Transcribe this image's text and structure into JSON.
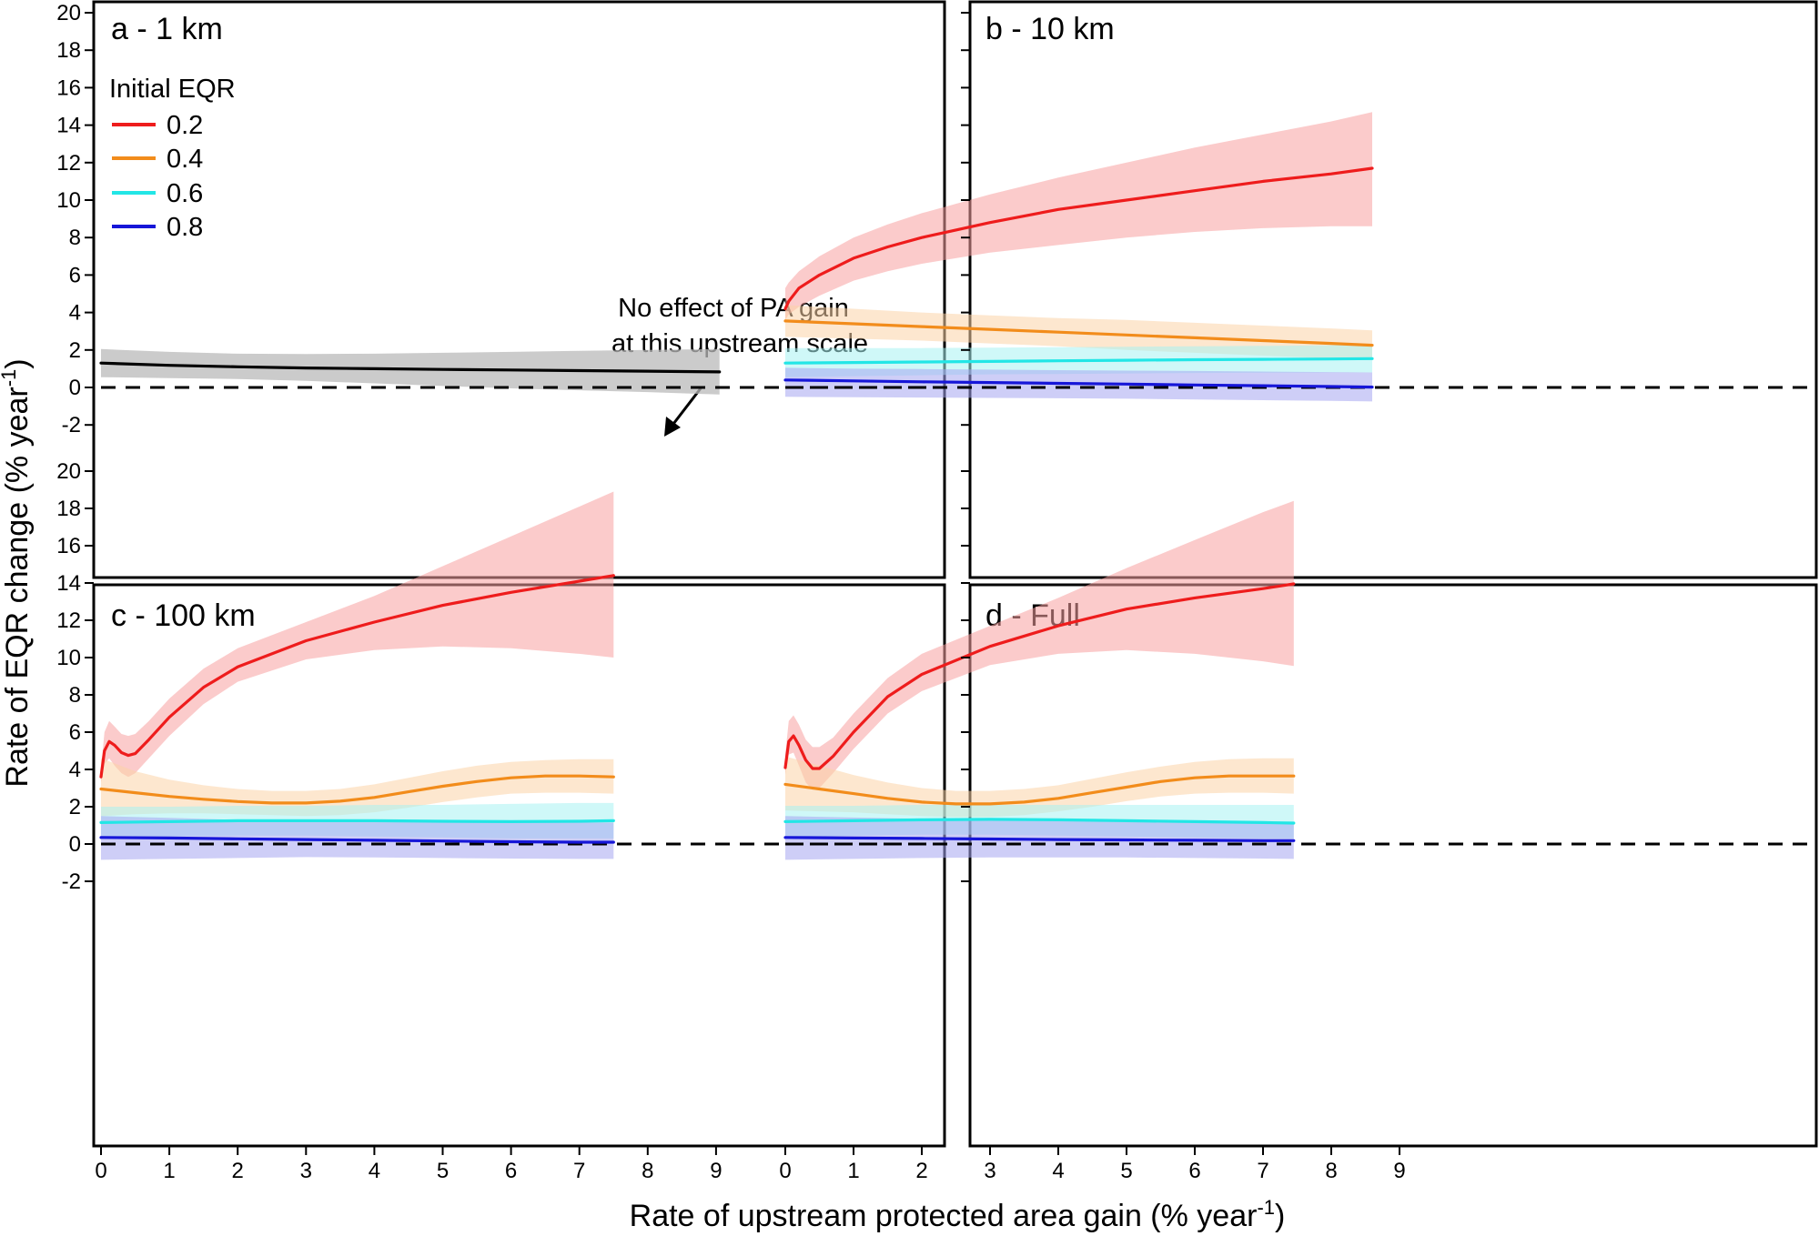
{
  "figure": {
    "ylabel": "Rate of EQR change (% year",
    "ylabel_sup": "-1",
    "ylabel_close": ")",
    "xlabel": "Rate of upstream protected area gain (% year",
    "xlabel_sup": "-1",
    "xlabel_close": ")"
  },
  "legend": {
    "title": "Initial EQR",
    "entries": [
      {
        "label": "0.2",
        "color": "#ee1c1c"
      },
      {
        "label": "0.4",
        "color": "#f28c1b"
      },
      {
        "label": "0.6",
        "color": "#22e6e6"
      },
      {
        "label": "0.8",
        "color": "#1616d8"
      }
    ]
  },
  "annotation": {
    "line1": "No effect of PA gain",
    "line2": "at this upstream scale"
  },
  "chart_data": [
    {
      "type": "line",
      "panel": "a - 1 km",
      "xlim": [
        0,
        9
      ],
      "ylim": [
        -2,
        20
      ],
      "x_ticks": [
        "0",
        "1",
        "2",
        "3",
        "4",
        "5",
        "6",
        "7",
        "8",
        "9"
      ],
      "y_ticks": [
        "-2",
        "0",
        "2",
        "4",
        "6",
        "8",
        "10",
        "12",
        "14",
        "16",
        "18",
        "20"
      ],
      "reference_line_y": 0,
      "series": [
        {
          "color": "#000000",
          "band_color": "#b9b9b9",
          "x": [
            0,
            1,
            2,
            3,
            4,
            5,
            6,
            7,
            8,
            9.05
          ],
          "y": [
            1.3,
            1.18,
            1.1,
            1.04,
            1.0,
            0.96,
            0.93,
            0.9,
            0.87,
            0.83
          ],
          "lower": [
            0.55,
            0.5,
            0.45,
            0.35,
            0.22,
            0.08,
            -0.05,
            -0.15,
            -0.25,
            -0.38
          ],
          "upper": [
            2.05,
            1.9,
            1.8,
            1.78,
            1.8,
            1.85,
            1.9,
            1.95,
            2.0,
            2.05
          ]
        }
      ]
    },
    {
      "type": "line",
      "panel": "b - 10 km",
      "xlim": [
        0,
        9
      ],
      "ylim": [
        -2,
        20
      ],
      "x_ticks": [
        "0",
        "1",
        "2",
        "3",
        "4",
        "5",
        "6",
        "7",
        "8",
        "9"
      ],
      "y_ticks": [
        "-2",
        "0",
        "2",
        "4",
        "6",
        "8",
        "10",
        "12",
        "14",
        "16",
        "18",
        "20"
      ],
      "reference_line_y": 0,
      "series": [
        {
          "name": "0.2",
          "color": "#ee1c1c",
          "band_color": "#f7a0a0",
          "x": [
            0,
            0.05,
            0.2,
            0.5,
            1,
            1.5,
            2,
            3,
            4,
            5,
            6,
            7,
            8,
            8.6
          ],
          "y": [
            4.2,
            4.6,
            5.3,
            6.0,
            6.9,
            7.5,
            8.0,
            8.8,
            9.5,
            10.0,
            10.5,
            11.0,
            11.4,
            11.7
          ],
          "lower": [
            3.6,
            3.9,
            4.3,
            4.9,
            5.7,
            6.2,
            6.6,
            7.2,
            7.6,
            8.0,
            8.3,
            8.5,
            8.6,
            8.6
          ],
          "upper": [
            5.3,
            5.6,
            6.2,
            7.0,
            8.0,
            8.7,
            9.3,
            10.3,
            11.2,
            12.0,
            12.8,
            13.5,
            14.2,
            14.7
          ]
        },
        {
          "name": "0.4",
          "color": "#f28c1b",
          "band_color": "#fbd3a8",
          "x": [
            0,
            1,
            2,
            3,
            4,
            5,
            6,
            7,
            8,
            8.6
          ],
          "y": [
            3.55,
            3.4,
            3.25,
            3.1,
            2.95,
            2.8,
            2.65,
            2.5,
            2.35,
            2.25
          ],
          "lower": [
            2.7,
            2.6,
            2.5,
            2.35,
            2.2,
            2.0,
            1.85,
            1.7,
            1.55,
            1.45
          ],
          "upper": [
            4.4,
            4.2,
            4.0,
            3.85,
            3.7,
            3.6,
            3.45,
            3.3,
            3.15,
            3.05
          ]
        },
        {
          "name": "0.6",
          "color": "#22e6e6",
          "band_color": "#a8f3f3",
          "x": [
            0,
            1,
            2,
            3,
            4,
            5,
            6,
            7,
            8,
            8.6
          ],
          "y": [
            1.3,
            1.33,
            1.36,
            1.39,
            1.42,
            1.45,
            1.48,
            1.5,
            1.52,
            1.54
          ],
          "lower": [
            0.55,
            0.6,
            0.65,
            0.7,
            0.72,
            0.75,
            0.77,
            0.78,
            0.8,
            0.8
          ],
          "upper": [
            2.1,
            2.1,
            2.1,
            2.12,
            2.15,
            2.17,
            2.2,
            2.22,
            2.25,
            2.3
          ]
        },
        {
          "name": "0.8",
          "color": "#1616d8",
          "band_color": "#a5a5f0",
          "x": [
            0,
            1,
            2,
            3,
            4,
            5,
            6,
            7,
            8,
            8.6
          ],
          "y": [
            0.4,
            0.35,
            0.3,
            0.26,
            0.22,
            0.18,
            0.13,
            0.09,
            0.05,
            0.02
          ],
          "lower": [
            -0.5,
            -0.52,
            -0.54,
            -0.56,
            -0.58,
            -0.6,
            -0.64,
            -0.68,
            -0.72,
            -0.75
          ],
          "upper": [
            1.05,
            1.0,
            0.98,
            0.95,
            0.92,
            0.9,
            0.88,
            0.85,
            0.82,
            0.8
          ]
        }
      ]
    },
    {
      "type": "line",
      "panel": "c - 100 km",
      "xlim": [
        0,
        9
      ],
      "ylim": [
        -2,
        20
      ],
      "x_ticks": [
        "0",
        "1",
        "2",
        "3",
        "4",
        "5",
        "6",
        "7",
        "8",
        "9"
      ],
      "y_ticks": [
        "-2",
        "0",
        "2",
        "4",
        "6",
        "8",
        "10",
        "12",
        "14",
        "16",
        "18",
        "20"
      ],
      "reference_line_y": 0,
      "series": [
        {
          "name": "0.2",
          "color": "#ee1c1c",
          "band_color": "#f7a0a0",
          "x": [
            0,
            0.05,
            0.12,
            0.2,
            0.3,
            0.4,
            0.5,
            0.7,
            1,
            1.5,
            2,
            3,
            4,
            5,
            6,
            7,
            7.5
          ],
          "y": [
            3.6,
            5.0,
            5.5,
            5.3,
            4.9,
            4.75,
            4.85,
            5.6,
            6.8,
            8.4,
            9.5,
            10.9,
            11.9,
            12.8,
            13.5,
            14.1,
            14.4
          ],
          "lower": [
            3.3,
            4.3,
            4.6,
            4.2,
            3.8,
            3.6,
            3.8,
            4.6,
            5.8,
            7.5,
            8.7,
            9.9,
            10.4,
            10.6,
            10.5,
            10.2,
            10.0
          ],
          "upper": [
            4.0,
            6.0,
            6.6,
            6.3,
            5.9,
            5.8,
            5.9,
            6.6,
            7.8,
            9.4,
            10.5,
            11.9,
            13.3,
            14.9,
            16.5,
            18.1,
            18.9
          ]
        },
        {
          "name": "0.4",
          "color": "#f28c1b",
          "band_color": "#fbd3a8",
          "x": [
            0,
            0.5,
            1,
            1.5,
            2,
            2.5,
            3,
            3.5,
            4,
            4.5,
            5,
            5.5,
            6,
            6.5,
            7,
            7.5
          ],
          "y": [
            2.95,
            2.75,
            2.55,
            2.4,
            2.28,
            2.2,
            2.2,
            2.3,
            2.5,
            2.8,
            3.1,
            3.35,
            3.55,
            3.65,
            3.65,
            3.6
          ],
          "lower": [
            1.5,
            1.6,
            1.65,
            1.65,
            1.6,
            1.55,
            1.5,
            1.55,
            1.7,
            1.95,
            2.25,
            2.5,
            2.7,
            2.75,
            2.75,
            2.7
          ],
          "upper": [
            4.6,
            3.9,
            3.45,
            3.15,
            2.95,
            2.85,
            2.85,
            2.95,
            3.2,
            3.55,
            3.9,
            4.2,
            4.4,
            4.5,
            4.55,
            4.55
          ]
        },
        {
          "name": "0.6",
          "color": "#22e6e6",
          "band_color": "#a8f3f3",
          "x": [
            0,
            1,
            2,
            3,
            4,
            5,
            6,
            7,
            7.5
          ],
          "y": [
            1.15,
            1.2,
            1.25,
            1.25,
            1.25,
            1.22,
            1.2,
            1.22,
            1.25
          ],
          "lower": [
            0.3,
            0.4,
            0.45,
            0.45,
            0.4,
            0.35,
            0.3,
            0.3,
            0.3
          ],
          "upper": [
            2.0,
            2.0,
            2.05,
            2.05,
            2.1,
            2.1,
            2.15,
            2.2,
            2.2
          ]
        },
        {
          "name": "0.8",
          "color": "#1616d8",
          "band_color": "#a5a5f0",
          "x": [
            0,
            1,
            2,
            3,
            4,
            5,
            6,
            7,
            7.5
          ],
          "y": [
            0.35,
            0.32,
            0.28,
            0.24,
            0.2,
            0.16,
            0.12,
            0.1,
            0.1
          ],
          "lower": [
            -0.85,
            -0.8,
            -0.75,
            -0.7,
            -0.72,
            -0.75,
            -0.78,
            -0.8,
            -0.8
          ],
          "upper": [
            1.5,
            1.4,
            1.3,
            1.25,
            1.2,
            1.18,
            1.15,
            1.15,
            1.15
          ]
        }
      ]
    },
    {
      "type": "line",
      "panel": "d - Full",
      "xlim": [
        0,
        9
      ],
      "ylim": [
        -2,
        20
      ],
      "x_ticks": [
        "0",
        "1",
        "2",
        "3",
        "4",
        "5",
        "6",
        "7",
        "8",
        "9"
      ],
      "y_ticks": [
        "-2",
        "0",
        "2",
        "4",
        "6",
        "8",
        "10",
        "12",
        "14",
        "16",
        "18",
        "20"
      ],
      "reference_line_y": 0,
      "series": [
        {
          "name": "0.2",
          "color": "#ee1c1c",
          "band_color": "#f7a0a0",
          "x": [
            0,
            0.05,
            0.12,
            0.2,
            0.3,
            0.4,
            0.5,
            0.7,
            1,
            1.5,
            2,
            3,
            4,
            5,
            6,
            7,
            7.45
          ],
          "y": [
            4.1,
            5.5,
            5.8,
            5.3,
            4.5,
            4.05,
            4.05,
            4.7,
            6.0,
            7.9,
            9.1,
            10.6,
            11.7,
            12.6,
            13.2,
            13.7,
            13.95
          ],
          "lower": [
            3.7,
            4.8,
            4.9,
            4.2,
            3.3,
            2.9,
            3.0,
            3.8,
            5.1,
            7.0,
            8.2,
            9.6,
            10.2,
            10.4,
            10.2,
            9.8,
            9.55
          ],
          "upper": [
            4.8,
            6.6,
            6.9,
            6.4,
            5.6,
            5.2,
            5.2,
            5.7,
            7.0,
            8.9,
            10.2,
            11.7,
            13.2,
            14.8,
            16.3,
            17.8,
            18.4
          ]
        },
        {
          "name": "0.4",
          "color": "#f28c1b",
          "band_color": "#fbd3a8",
          "x": [
            0,
            0.5,
            1,
            1.5,
            2,
            2.5,
            3,
            3.5,
            4,
            4.5,
            5,
            5.5,
            6,
            6.5,
            7,
            7.45
          ],
          "y": [
            3.2,
            2.95,
            2.7,
            2.45,
            2.25,
            2.15,
            2.15,
            2.25,
            2.45,
            2.75,
            3.05,
            3.35,
            3.55,
            3.65,
            3.65,
            3.65
          ],
          "lower": [
            1.8,
            1.75,
            1.7,
            1.6,
            1.5,
            1.45,
            1.45,
            1.55,
            1.75,
            2.0,
            2.3,
            2.55,
            2.7,
            2.75,
            2.75,
            2.7
          ],
          "upper": [
            4.7,
            4.2,
            3.7,
            3.3,
            3.0,
            2.85,
            2.85,
            2.95,
            3.15,
            3.5,
            3.85,
            4.15,
            4.4,
            4.55,
            4.6,
            4.6
          ]
        },
        {
          "name": "0.6",
          "color": "#22e6e6",
          "band_color": "#a8f3f3",
          "x": [
            0,
            1,
            2,
            3,
            4,
            5,
            6,
            7,
            7.45
          ],
          "y": [
            1.2,
            1.25,
            1.3,
            1.32,
            1.3,
            1.25,
            1.2,
            1.15,
            1.12
          ],
          "lower": [
            0.35,
            0.45,
            0.5,
            0.5,
            0.45,
            0.4,
            0.35,
            0.3,
            0.3
          ],
          "upper": [
            2.05,
            2.05,
            2.1,
            2.1,
            2.1,
            2.1,
            2.1,
            2.1,
            2.1
          ]
        },
        {
          "name": "0.8",
          "color": "#1616d8",
          "band_color": "#a5a5f0",
          "x": [
            0,
            1,
            2,
            3,
            4,
            5,
            6,
            7,
            7.45
          ],
          "y": [
            0.35,
            0.32,
            0.3,
            0.27,
            0.24,
            0.22,
            0.2,
            0.18,
            0.18
          ],
          "lower": [
            -0.85,
            -0.8,
            -0.75,
            -0.72,
            -0.72,
            -0.72,
            -0.75,
            -0.78,
            -0.8
          ],
          "upper": [
            1.5,
            1.42,
            1.35,
            1.3,
            1.25,
            1.22,
            1.2,
            1.18,
            1.18
          ]
        }
      ]
    }
  ]
}
